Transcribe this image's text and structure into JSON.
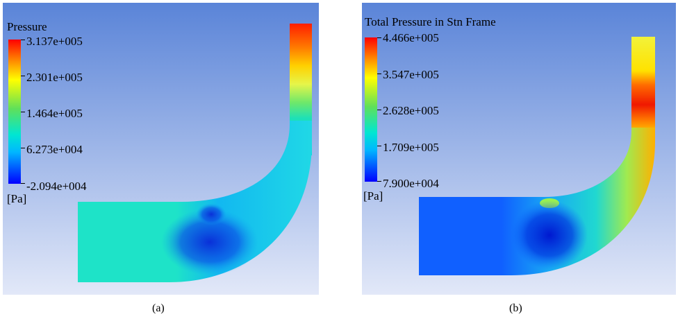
{
  "panels": [
    {
      "legend_title": "Pressure",
      "ticks": [
        "3.137e+005",
        "2.301e+005",
        "1.464e+005",
        "6.273e+004",
        "-2.094e+004"
      ],
      "unit": "[Pa]",
      "caption": "(a)"
    },
    {
      "legend_title": "Total Pressure in Stn Frame",
      "ticks": [
        "4.466e+005",
        "3.547e+005",
        "2.628e+005",
        "1.709e+005",
        "7.900e+004"
      ],
      "unit": "[Pa]",
      "caption": "(b)"
    }
  ],
  "colors": {
    "background_top": "#5a84d8",
    "background_bottom": "#e2e8f8"
  }
}
